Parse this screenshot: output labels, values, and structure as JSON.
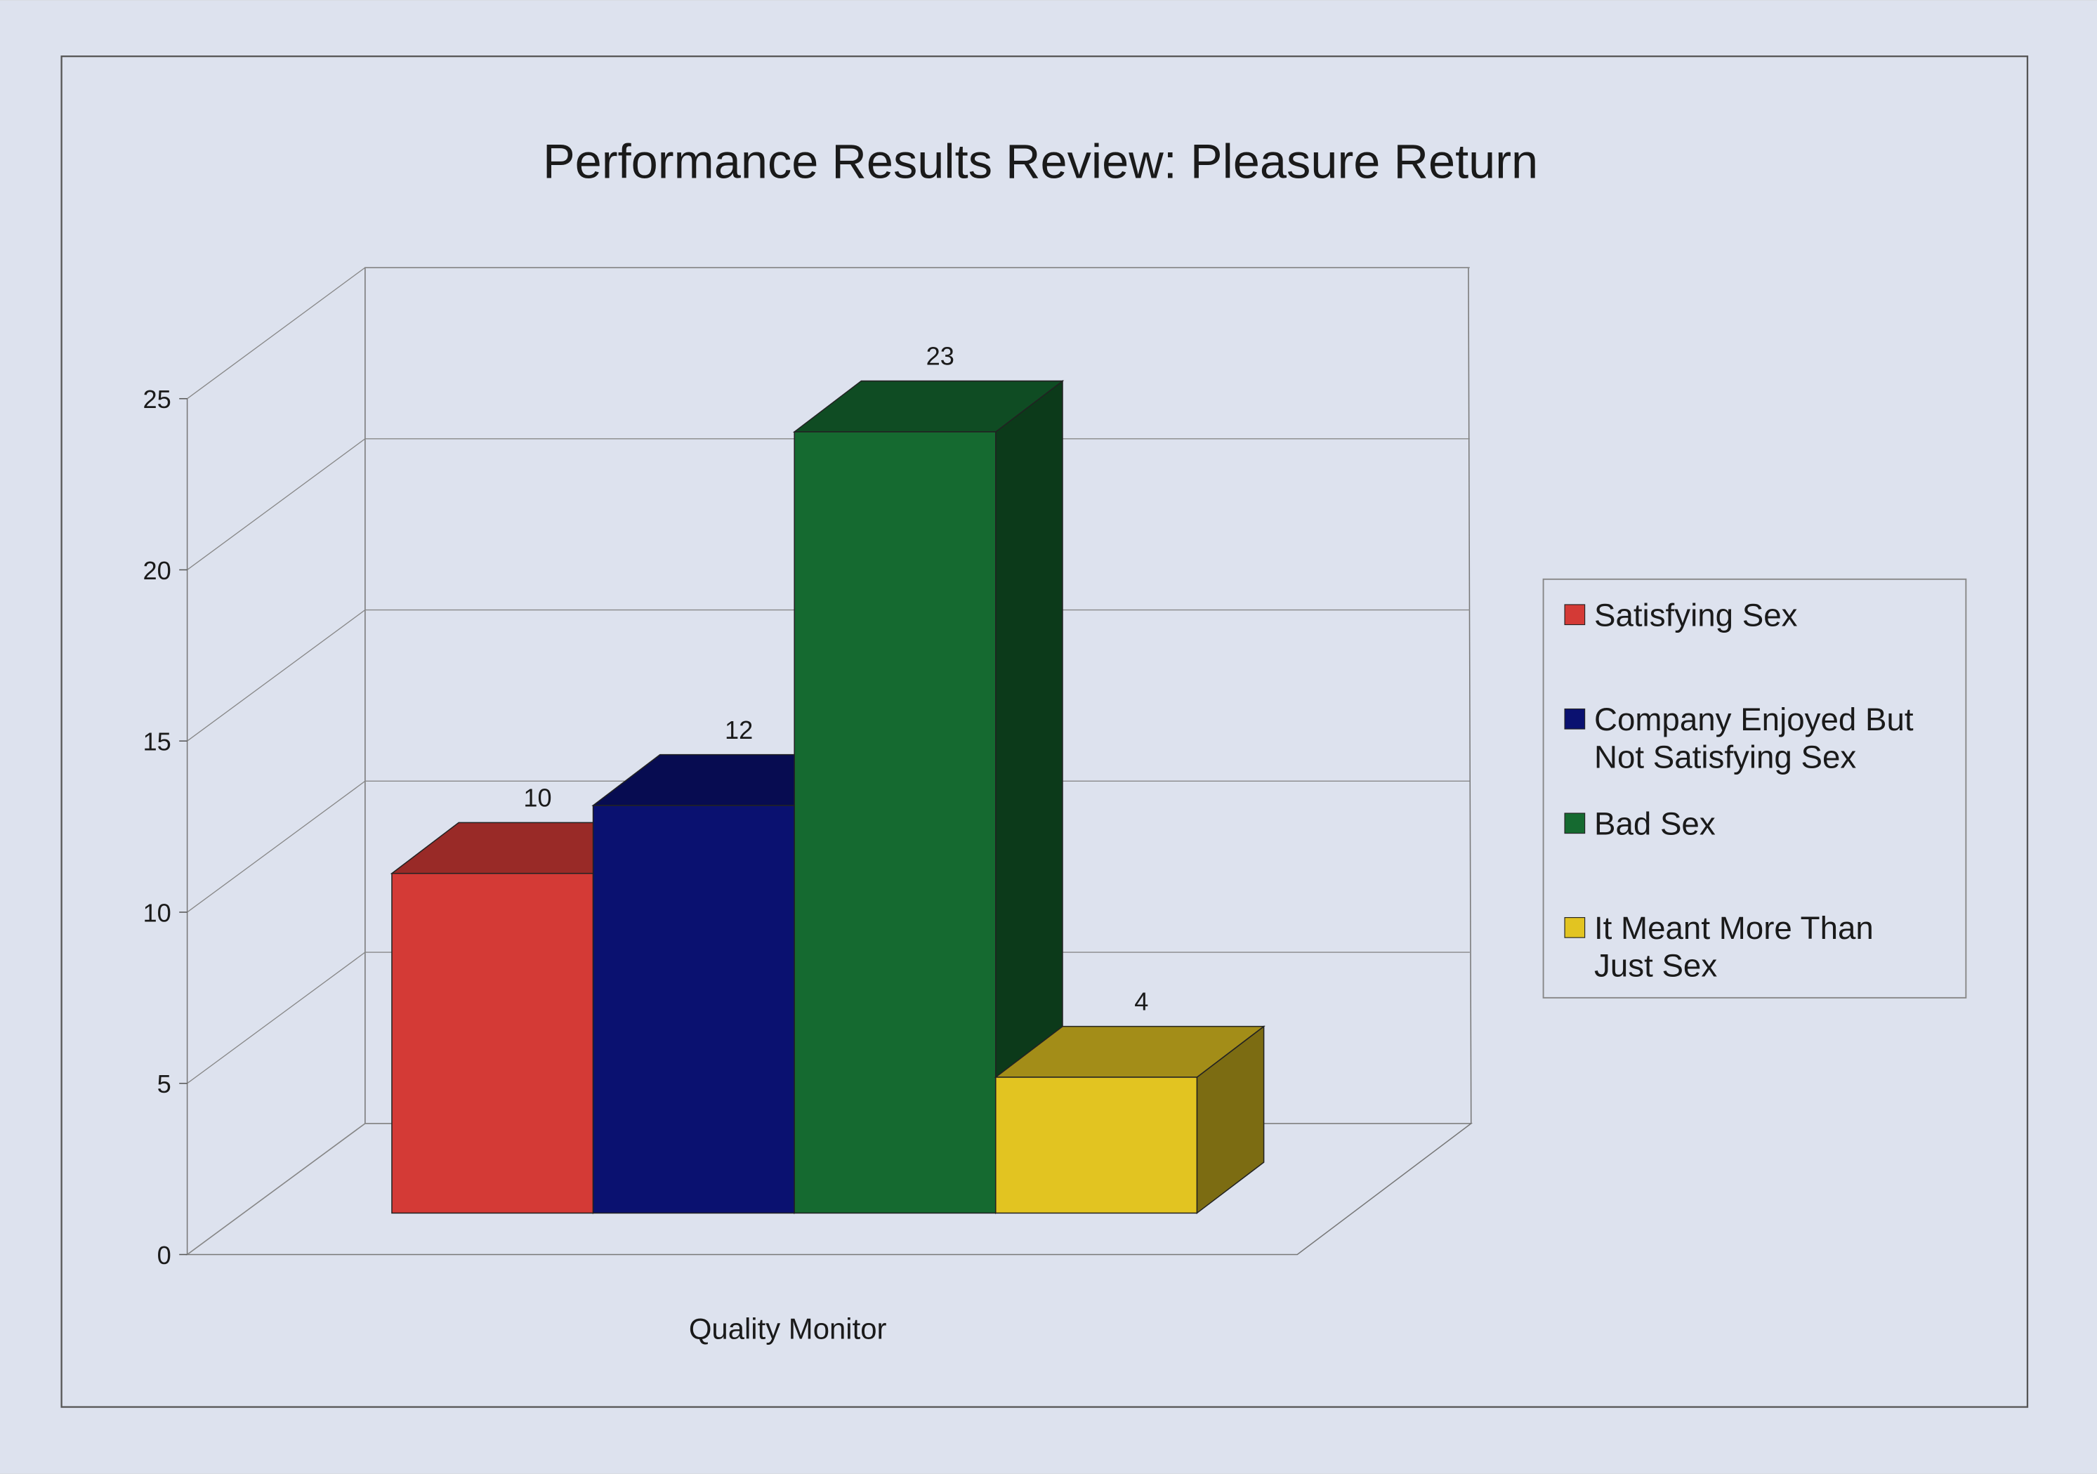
{
  "chart_data": {
    "type": "bar",
    "style": "3d",
    "title": "Performance Results Review: Pleasure Return",
    "xlabel": "Quality Monitor",
    "ylabel": "",
    "categories": [
      "Quality Monitor"
    ],
    "ylim": [
      0,
      25
    ],
    "yticks": [
      "0",
      "5",
      "10",
      "15",
      "20",
      "25"
    ],
    "grid": true,
    "legend_position": "right",
    "series": [
      {
        "name": "Satisfying Sex",
        "value": 10,
        "label": "10",
        "color": "#d43a36"
      },
      {
        "name": "Company Enjoyed But Not Satisfying Sex",
        "name_lines": [
          "Company Enjoyed But",
          "Not Satisfying Sex"
        ],
        "value": 12,
        "label": "12",
        "color": "#0a1170"
      },
      {
        "name": "Bad Sex",
        "value": 23,
        "label": "23",
        "color": "#156a30"
      },
      {
        "name": "It Meant More Than Just Sex",
        "name_lines": [
          "It Meant More Than",
          "Just Sex"
        ],
        "value": 4,
        "label": "4",
        "color": "#e2c421"
      }
    ]
  }
}
